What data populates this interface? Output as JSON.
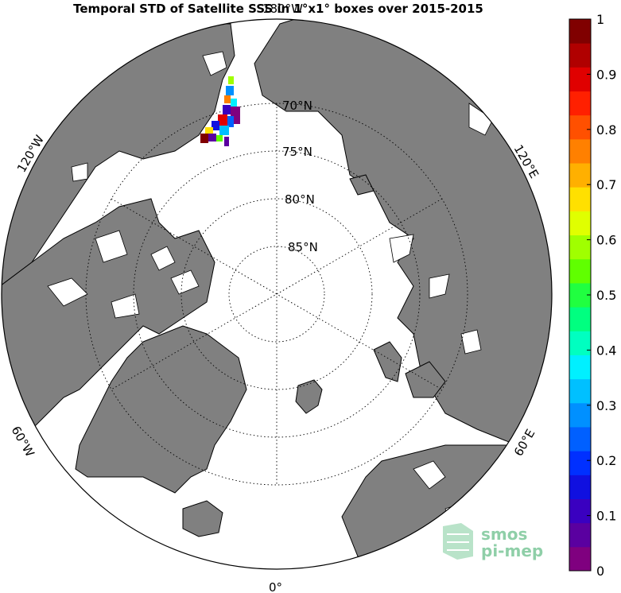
{
  "title": "Temporal STD of Satellite SSS in 1°x1° boxes over 2015-2015",
  "map": {
    "projection": "north polar stereographic",
    "latitude_labels": [
      "70°N",
      "75°N",
      "80°N",
      "85°N"
    ],
    "longitude_labels": {
      "top": "180°W",
      "upper_left": "120°W",
      "upper_right": "120°E",
      "lower_left": "60°W",
      "lower_right": "60°E",
      "bottom": "0°"
    },
    "land_color": "#808080",
    "ocean_color": "#ffffff"
  },
  "colorbar": {
    "ticks": [
      "0",
      "0.1",
      "0.2",
      "0.3",
      "0.4",
      "0.5",
      "0.6",
      "0.7",
      "0.8",
      "0.9",
      "1"
    ],
    "min": 0,
    "max": 1,
    "colors": [
      "#7f007f",
      "#5a00a0",
      "#3a00c0",
      "#1010e0",
      "#0030ff",
      "#0060ff",
      "#0090ff",
      "#00c0ff",
      "#00f0ff",
      "#00ffc0",
      "#00ff80",
      "#20ff40",
      "#60ff00",
      "#a0ff00",
      "#e0ff00",
      "#ffe000",
      "#ffb000",
      "#ff8000",
      "#ff5000",
      "#ff2000",
      "#e00000",
      "#b00000",
      "#800000"
    ]
  },
  "logo": {
    "line1": "smos",
    "line2": "pi-mep"
  }
}
